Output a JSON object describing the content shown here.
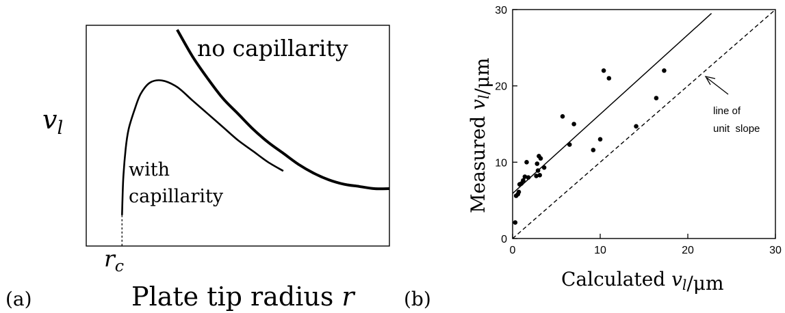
{
  "chart_data": [
    {
      "type": "line",
      "panel_label": "(a)",
      "xlabel": "Plate tip radius r",
      "ylabel": "v_l",
      "x_tick_label": "r_c",
      "series": [
        {
          "name": "no capillarity",
          "x": [
            0.3,
            0.35,
            0.4,
            0.45,
            0.5,
            0.55,
            0.6,
            0.65,
            0.7,
            0.75,
            0.8,
            0.85,
            0.9,
            0.95,
            1.0
          ],
          "y": [
            0.98,
            0.86,
            0.76,
            0.67,
            0.6,
            0.53,
            0.47,
            0.42,
            0.37,
            0.33,
            0.3,
            0.28,
            0.27,
            0.26,
            0.26
          ]
        },
        {
          "name": "with capillarity",
          "x": [
            0.118,
            0.122,
            0.13,
            0.14,
            0.16,
            0.18,
            0.21,
            0.25,
            0.3,
            0.35,
            0.4,
            0.45,
            0.5,
            0.55,
            0.6,
            0.65
          ],
          "y": [
            0.14,
            0.3,
            0.44,
            0.53,
            0.62,
            0.69,
            0.74,
            0.75,
            0.72,
            0.66,
            0.6,
            0.54,
            0.48,
            0.43,
            0.38,
            0.34
          ]
        }
      ]
    },
    {
      "type": "scatter",
      "panel_label": "(b)",
      "xlabel": "Calculated v_l/μm",
      "ylabel": "Measured v_l/μm",
      "xlim": [
        0,
        30
      ],
      "ylim": [
        0,
        30
      ],
      "xticks": [
        0,
        10,
        20,
        30
      ],
      "yticks": [
        0,
        10,
        20,
        30
      ],
      "annotation": [
        "line of",
        "unit  slope"
      ],
      "points": {
        "x": [
          0.3,
          0.4,
          0.6,
          0.7,
          0.8,
          1.0,
          1.2,
          1.4,
          1.6,
          1.8,
          2.7,
          2.8,
          2.9,
          3.0,
          3.1,
          3.2,
          3.6,
          5.7,
          6.5,
          7.0,
          9.2,
          10.0,
          10.4,
          11.0,
          14.1,
          16.4,
          17.3
        ],
        "y": [
          2.1,
          5.6,
          5.8,
          6.1,
          7.1,
          7.2,
          7.6,
          8.1,
          10.0,
          8.0,
          8.2,
          9.8,
          8.9,
          10.8,
          8.3,
          10.5,
          9.3,
          16.0,
          12.3,
          15.0,
          11.6,
          13.0,
          22.0,
          21.0,
          14.7,
          18.4,
          22.0
        ]
      },
      "fit_line": {
        "x": [
          0,
          22.7
        ],
        "y": [
          5.9,
          29.5
        ]
      },
      "unit_slope_line": {
        "x": [
          0,
          30
        ],
        "y": [
          0,
          30
        ]
      }
    }
  ]
}
